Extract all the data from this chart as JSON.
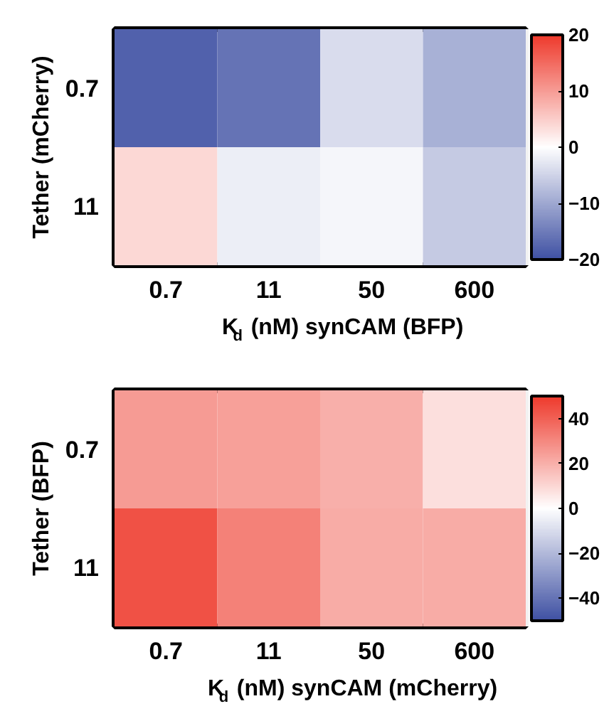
{
  "chart_data": [
    {
      "type": "heatmap",
      "xlabel": "K$_{d}$ (nM)  synCAM (BFP)",
      "ylabel": "Tether (mCherry)",
      "categories": [
        "0.7",
        "11",
        "50",
        "600"
      ],
      "y_categories": [
        "0.7",
        "11"
      ],
      "cells": [
        [
          -18,
          -16,
          -4,
          -9
        ],
        [
          4,
          -2,
          -1,
          -6
        ]
      ],
      "clim": [
        -20,
        20
      ],
      "cticks": [
        -20,
        -10,
        0,
        10,
        20
      ]
    },
    {
      "type": "heatmap",
      "xlabel": "K$_{d}$ (nM) synCAM (mCherry)",
      "ylabel": "Tether (BFP)",
      "categories": [
        "0.7",
        "11",
        "50",
        "600"
      ],
      "y_categories": [
        "0.7",
        "11"
      ],
      "cells": [
        [
          25,
          24,
          20,
          8
        ],
        [
          44,
          32,
          21,
          21
        ]
      ],
      "clim": [
        -50,
        50
      ],
      "cticks": [
        -40,
        -20,
        0,
        20,
        40
      ]
    }
  ]
}
